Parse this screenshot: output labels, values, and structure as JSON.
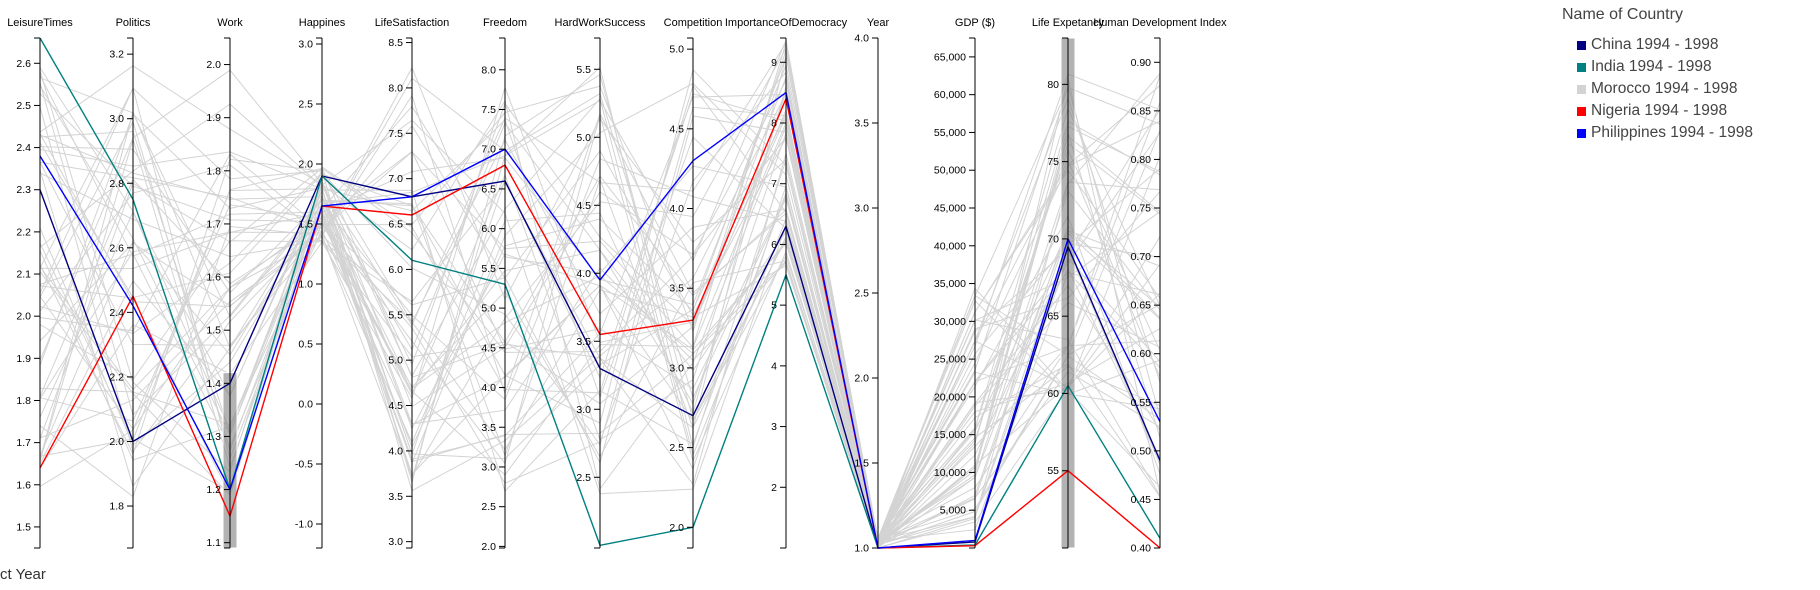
{
  "chart_data": {
    "type": "parallel-coordinates",
    "axes": [
      {
        "name": "LeisureTimes",
        "ticks": [
          "1.5",
          "1.6",
          "1.7",
          "1.8",
          "1.9",
          "2.0",
          "2.1",
          "2.2",
          "2.3",
          "2.4",
          "2.5",
          "2.6"
        ],
        "domain": [
          1.45,
          2.66
        ]
      },
      {
        "name": "Politics",
        "ticks": [
          "1.8",
          "2.0",
          "2.2",
          "2.4",
          "2.6",
          "2.8",
          "3.0",
          "3.2"
        ],
        "domain": [
          1.67,
          3.25
        ]
      },
      {
        "name": "Work",
        "ticks": [
          "1.1",
          "1.2",
          "1.3",
          "1.4",
          "1.5",
          "1.6",
          "1.7",
          "1.8",
          "1.9",
          "2.0"
        ],
        "domain": [
          1.09,
          2.05
        ]
      },
      {
        "name": "Happines",
        "ticks": [
          "-1.0",
          "-0.5",
          "0.0",
          "0.5",
          "1.0",
          "1.5",
          "2.0",
          "2.5",
          "3.0"
        ],
        "domain": [
          -1.2,
          3.05
        ]
      },
      {
        "name": "LifeSatisfaction",
        "ticks": [
          "3.0",
          "3.5",
          "4.0",
          "4.5",
          "5.0",
          "5.5",
          "6.0",
          "6.5",
          "7.0",
          "7.5",
          "8.0",
          "8.5"
        ],
        "domain": [
          2.93,
          8.55
        ]
      },
      {
        "name": "Freedom",
        "ticks": [
          "2.0",
          "2.5",
          "3.0",
          "3.5",
          "4.0",
          "4.5",
          "5.0",
          "5.5",
          "6.0",
          "6.5",
          "7.0",
          "7.5",
          "8.0"
        ],
        "domain": [
          1.98,
          8.4
        ]
      },
      {
        "name": "HardWorkSuccess",
        "ticks": [
          "2.5",
          "3.0",
          "3.5",
          "4.0",
          "4.5",
          "5.0",
          "5.5"
        ],
        "domain": [
          1.98,
          5.73
        ]
      },
      {
        "name": "Competition",
        "ticks": [
          "2.0",
          "2.5",
          "3.0",
          "3.5",
          "4.0",
          "4.5",
          "5.0"
        ],
        "domain": [
          1.87,
          5.07
        ]
      },
      {
        "name": "ImportanceOfDemocracy",
        "ticks": [
          "2",
          "3",
          "4",
          "5",
          "6",
          "7",
          "8",
          "9"
        ],
        "domain": [
          1.0,
          9.4
        ]
      },
      {
        "name": "Year",
        "ticks": [
          "1.0",
          "1.5",
          "2.0",
          "2.5",
          "3.0",
          "3.5",
          "4.0"
        ],
        "domain": [
          1.0,
          4.0
        ]
      },
      {
        "name": "GDP ($)",
        "ticks": [
          "5,000",
          "10,000",
          "15,000",
          "20,000",
          "25,000",
          "30,000",
          "35,000",
          "40,000",
          "45,000",
          "50,000",
          "55,000",
          "60,000",
          "65,000"
        ],
        "domain": [
          0,
          67500
        ]
      },
      {
        "name": "Life Expetancy",
        "ticks": [
          "55",
          "60",
          "65",
          "70",
          "75",
          "80"
        ],
        "domain": [
          50,
          83
        ]
      },
      {
        "name": "Human Development Index",
        "ticks": [
          "0.40",
          "0.45",
          "0.50",
          "0.55",
          "0.60",
          "0.65",
          "0.70",
          "0.75",
          "0.80",
          "0.85",
          "0.90"
        ],
        "domain": [
          0.4,
          0.925
        ]
      }
    ],
    "series": [
      {
        "name": "China 1994 - 1998",
        "color": "#000080",
        "values": [
          2.3,
          2.0,
          1.4,
          1.9,
          6.8,
          6.6,
          3.3,
          2.7,
          6.3,
          1.0,
          800,
          69.5,
          0.49
        ]
      },
      {
        "name": "India 1994 - 1998",
        "color": "#008080",
        "values": [
          2.66,
          2.75,
          1.2,
          1.9,
          6.1,
          5.3,
          2.0,
          2.0,
          5.5,
          1.0,
          400,
          60.5,
          0.41
        ]
      },
      {
        "name": "Nigeria 1994 - 1998",
        "color": "#ff0000",
        "values": [
          1.64,
          2.45,
          1.15,
          1.65,
          6.6,
          6.8,
          3.55,
          3.3,
          8.4,
          1.0,
          300,
          55.0,
          0.4
        ]
      },
      {
        "name": "Philippines 1994 - 1998",
        "color": "#0000ff",
        "values": [
          2.38,
          2.42,
          1.2,
          1.65,
          6.8,
          7.0,
          3.95,
          4.3,
          8.5,
          1.0,
          1000,
          70.0,
          0.53
        ]
      }
    ],
    "background_series_label": "Morocco 1994 - 1998",
    "background_color": "#d3d3d3",
    "brushes": [
      {
        "axis": "Work",
        "range": [
          1.09,
          1.42
        ]
      },
      {
        "axis": "Life Expetancy",
        "range": [
          50,
          83
        ]
      }
    ]
  },
  "legend": {
    "title": "Name of Country",
    "items": [
      {
        "label": "China 1994 - 1998",
        "color": "#000080"
      },
      {
        "label": "India 1994 - 1998",
        "color": "#008080"
      },
      {
        "label": "Morocco 1994 - 1998",
        "color": "#d3d3d3"
      },
      {
        "label": "Nigeria 1994 - 1998",
        "color": "#ff0000"
      },
      {
        "label": "Philippines 1994 - 1998",
        "color": "#0000ff"
      }
    ]
  },
  "footer_label": "ct Year"
}
